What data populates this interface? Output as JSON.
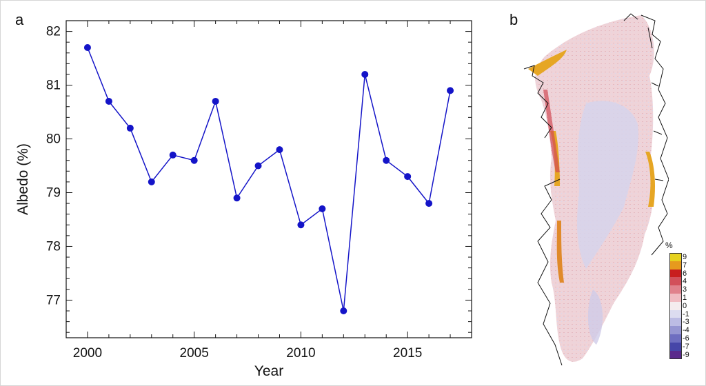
{
  "panels": {
    "a": "a",
    "b": "b"
  },
  "chart_data": {
    "type": "line",
    "xlabel": "Year",
    "ylabel": "Albedo (%)",
    "xlim": [
      1999,
      2018
    ],
    "ylim": [
      76.3,
      82.2
    ],
    "x_ticks": [
      2000,
      2005,
      2010,
      2015
    ],
    "y_ticks": [
      77,
      78,
      79,
      80,
      81,
      82
    ],
    "series": [
      {
        "color": "#1414c8",
        "x": [
          2000,
          2001,
          2002,
          2003,
          2004,
          2005,
          2006,
          2007,
          2008,
          2009,
          2010,
          2011,
          2012,
          2013,
          2014,
          2015,
          2016,
          2017
        ],
        "values": [
          81.7,
          80.7,
          80.2,
          79.2,
          79.7,
          79.6,
          80.7,
          78.9,
          79.5,
          79.8,
          78.4,
          78.7,
          76.8,
          81.2,
          79.6,
          79.3,
          78.8,
          80.9
        ]
      }
    ],
    "grid": false
  },
  "map": {
    "colorbar_unit": "%",
    "colorbar": [
      {
        "label": "9",
        "color": "#e6d21e"
      },
      {
        "label": "7",
        "color": "#e69a1e"
      },
      {
        "label": "6",
        "color": "#c81e1e"
      },
      {
        "label": "4",
        "color": "#d2505a"
      },
      {
        "label": "3",
        "color": "#e0828c"
      },
      {
        "label": "1",
        "color": "#f0bcc2"
      },
      {
        "label": "0",
        "color": "#f4ecee"
      },
      {
        "label": "-1",
        "color": "#dcdcf0"
      },
      {
        "label": "-3",
        "color": "#bcbce4"
      },
      {
        "label": "-4",
        "color": "#9696d2"
      },
      {
        "label": "-6",
        "color": "#6e6ec0"
      },
      {
        "label": "-7",
        "color": "#4646a8"
      },
      {
        "label": "-9",
        "color": "#5a2a8c"
      }
    ]
  }
}
